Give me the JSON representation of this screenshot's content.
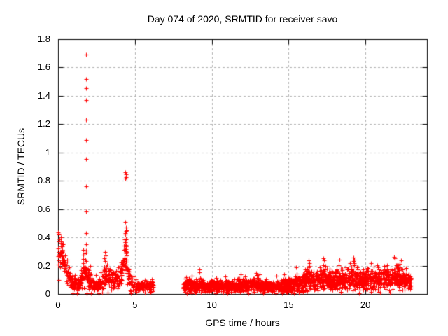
{
  "chart_data": {
    "type": "scatter",
    "title": "Day 074 of 2020, SRMTID for receiver savo",
    "xlabel": "GPS time / hours",
    "ylabel": "SRMTID / TECUs",
    "xlim": [
      0,
      24
    ],
    "ylim": [
      0,
      1.8
    ],
    "xticks": [
      0,
      5,
      10,
      15,
      20
    ],
    "yticks": [
      0,
      0.2,
      0.4,
      0.6,
      0.8,
      1,
      1.2,
      1.4,
      1.6,
      1.8
    ],
    "xtick_labels": [
      "0",
      "5",
      "10",
      "15",
      "20"
    ],
    "ytick_labels": [
      "0",
      "0.2",
      "0.4",
      "0.6",
      "0.8",
      "1",
      "1.2",
      "1.4",
      "1.6",
      "1.8"
    ],
    "grid": true,
    "legend_position": "none",
    "marker": "plus",
    "marker_color": "#ff0000",
    "grid_color": "#b0b0b0",
    "frame_color": "#000000",
    "text_color": "#000000",
    "background_color": "#ffffff",
    "seed": 42,
    "outlier_points": [
      [
        0.02,
        0.435
      ],
      [
        0.06,
        0.42
      ],
      [
        0.02,
        0.21
      ],
      [
        0.03,
        0.1
      ],
      [
        1.82,
        1.69
      ],
      [
        1.83,
        1.52
      ],
      [
        1.82,
        1.455
      ],
      [
        1.83,
        1.37
      ],
      [
        1.82,
        1.23
      ],
      [
        1.83,
        1.09
      ],
      [
        1.82,
        0.955
      ],
      [
        1.83,
        0.76
      ],
      [
        1.82,
        0.585
      ],
      [
        1.83,
        0.43
      ],
      [
        1.82,
        0.35
      ],
      [
        1.83,
        0.305
      ],
      [
        1.63,
        0.31
      ],
      [
        1.64,
        0.275
      ],
      [
        1.62,
        0.245
      ],
      [
        1.65,
        0.22
      ],
      [
        1.63,
        0.19
      ],
      [
        2.1,
        0.2
      ],
      [
        3.05,
        0.295
      ],
      [
        3.1,
        0.27
      ],
      [
        3.02,
        0.25
      ],
      [
        4.38,
        0.862
      ],
      [
        4.4,
        0.845
      ],
      [
        4.41,
        0.828
      ],
      [
        4.39,
        0.815
      ],
      [
        4.39,
        0.51
      ],
      [
        4.41,
        0.47
      ],
      [
        4.4,
        0.445
      ],
      [
        4.38,
        0.42
      ],
      [
        4.42,
        0.385
      ],
      [
        4.4,
        0.345
      ],
      [
        4.41,
        0.3
      ],
      [
        4.45,
        0.45
      ],
      [
        4.35,
        0.43
      ],
      [
        8.35,
        0.12
      ],
      [
        8.68,
        0.13
      ],
      [
        9.2,
        0.175
      ],
      [
        9.22,
        0.155
      ],
      [
        10.3,
        0.115
      ],
      [
        10.9,
        0.125
      ],
      [
        11.9,
        0.14
      ],
      [
        12.9,
        0.15
      ],
      [
        13.1,
        0.14
      ],
      [
        14.2,
        0.13
      ],
      [
        14.7,
        0.14
      ],
      [
        15.5,
        0.19
      ],
      [
        16.3,
        0.235
      ],
      [
        16.35,
        0.22
      ],
      [
        17.25,
        0.25
      ],
      [
        17.3,
        0.235
      ],
      [
        18.3,
        0.24
      ],
      [
        19.2,
        0.255
      ],
      [
        19.25,
        0.24
      ],
      [
        20.35,
        0.22
      ],
      [
        21.85,
        0.26
      ],
      [
        21.9,
        0.25
      ],
      [
        22.3,
        0.235
      ]
    ],
    "bands": [
      {
        "name": "morning-section",
        "n": 700,
        "control_points": [
          [
            0.0,
            0.3,
            0.11
          ],
          [
            0.2,
            0.29,
            0.1
          ],
          [
            0.5,
            0.18,
            0.08
          ],
          [
            0.9,
            0.08,
            0.05
          ],
          [
            1.25,
            0.06,
            0.04
          ],
          [
            1.45,
            0.07,
            0.05
          ],
          [
            1.6,
            0.17,
            0.1
          ],
          [
            1.75,
            0.13,
            0.09
          ],
          [
            1.85,
            0.18,
            0.12
          ],
          [
            2.0,
            0.1,
            0.07
          ],
          [
            2.2,
            0.07,
            0.05
          ],
          [
            2.6,
            0.06,
            0.04
          ],
          [
            2.9,
            0.09,
            0.06
          ],
          [
            3.1,
            0.14,
            0.08
          ],
          [
            3.3,
            0.12,
            0.07
          ],
          [
            3.6,
            0.1,
            0.06
          ],
          [
            3.9,
            0.1,
            0.06
          ],
          [
            4.15,
            0.14,
            0.08
          ],
          [
            4.4,
            0.26,
            0.13
          ],
          [
            4.55,
            0.13,
            0.08
          ],
          [
            4.75,
            0.08,
            0.05
          ],
          [
            5.1,
            0.06,
            0.035
          ],
          [
            5.5,
            0.06,
            0.035
          ],
          [
            5.9,
            0.055,
            0.03
          ],
          [
            6.2,
            0.05,
            0.03
          ]
        ]
      },
      {
        "name": "day-evening-section",
        "n": 2100,
        "control_points": [
          [
            8.15,
            0.045,
            0.03
          ],
          [
            8.35,
            0.07,
            0.045
          ],
          [
            8.6,
            0.065,
            0.045
          ],
          [
            9.0,
            0.05,
            0.035
          ],
          [
            9.2,
            0.075,
            0.05
          ],
          [
            9.5,
            0.05,
            0.035
          ],
          [
            10.0,
            0.05,
            0.035
          ],
          [
            10.5,
            0.055,
            0.035
          ],
          [
            11.0,
            0.05,
            0.035
          ],
          [
            11.5,
            0.055,
            0.04
          ],
          [
            11.9,
            0.065,
            0.045
          ],
          [
            12.3,
            0.055,
            0.04
          ],
          [
            12.9,
            0.07,
            0.045
          ],
          [
            13.4,
            0.055,
            0.04
          ],
          [
            13.9,
            0.05,
            0.03
          ],
          [
            14.4,
            0.055,
            0.035
          ],
          [
            14.9,
            0.06,
            0.04
          ],
          [
            15.2,
            0.065,
            0.045
          ],
          [
            15.5,
            0.085,
            0.055
          ],
          [
            15.8,
            0.07,
            0.05
          ],
          [
            16.3,
            0.115,
            0.07
          ],
          [
            16.7,
            0.075,
            0.05
          ],
          [
            17.2,
            0.125,
            0.075
          ],
          [
            17.8,
            0.08,
            0.055
          ],
          [
            18.3,
            0.115,
            0.07
          ],
          [
            18.8,
            0.09,
            0.06
          ],
          [
            19.2,
            0.125,
            0.075
          ],
          [
            19.7,
            0.09,
            0.06
          ],
          [
            20.2,
            0.11,
            0.065
          ],
          [
            20.7,
            0.1,
            0.06
          ],
          [
            21.1,
            0.115,
            0.07
          ],
          [
            21.6,
            0.1,
            0.06
          ],
          [
            22.0,
            0.125,
            0.07
          ],
          [
            22.5,
            0.105,
            0.065
          ],
          [
            22.95,
            0.08,
            0.05
          ]
        ]
      }
    ]
  }
}
